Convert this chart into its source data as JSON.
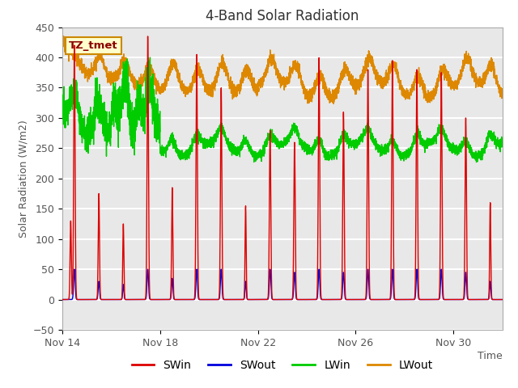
{
  "title": "4-Band Solar Radiation",
  "xlabel": "Time",
  "ylabel": "Solar Radiation (W/m2)",
  "ylim": [
    -50,
    450
  ],
  "xlim_days": [
    0,
    18
  ],
  "yticks": [
    -50,
    0,
    50,
    100,
    150,
    200,
    250,
    300,
    350,
    400,
    450
  ],
  "xtick_labels": [
    "Nov 14",
    "Nov 18",
    "Nov 22",
    "Nov 26",
    "Nov 30"
  ],
  "xtick_positions": [
    0,
    4,
    8,
    12,
    16
  ],
  "colors": {
    "SWin": "#dd0000",
    "SWout": "#0000dd",
    "LWin": "#00cc00",
    "LWout": "#dd8800"
  },
  "annotation_text": "TZ_tmet",
  "annotation_box_facecolor": "#ffffcc",
  "annotation_box_edgecolor": "#cc8800",
  "plot_bg": "#e8e8e8",
  "grid_color": "#ffffff",
  "title_fontsize": 12,
  "label_fontsize": 9,
  "tick_fontsize": 9,
  "legend_fontsize": 10,
  "linewidth": 1.0,
  "days": 18,
  "pts_per_day": 288,
  "SWin_peaks": [
    420,
    175,
    125,
    435,
    185,
    405,
    350,
    155,
    280,
    260,
    400,
    310,
    380,
    395,
    380,
    375,
    300,
    160
  ],
  "SWout_peaks": [
    50,
    30,
    25,
    50,
    35,
    50,
    50,
    30,
    50,
    45,
    50,
    45,
    50,
    50,
    50,
    50,
    45,
    30
  ],
  "SWin_widths": [
    0.028,
    0.025,
    0.022,
    0.028,
    0.025,
    0.028,
    0.028,
    0.022,
    0.028,
    0.028,
    0.028,
    0.028,
    0.028,
    0.028,
    0.028,
    0.028,
    0.028,
    0.022
  ],
  "SWout_widths": [
    0.03,
    0.028,
    0.025,
    0.03,
    0.028,
    0.03,
    0.03,
    0.025,
    0.03,
    0.03,
    0.03,
    0.03,
    0.03,
    0.03,
    0.03,
    0.03,
    0.03,
    0.025
  ]
}
